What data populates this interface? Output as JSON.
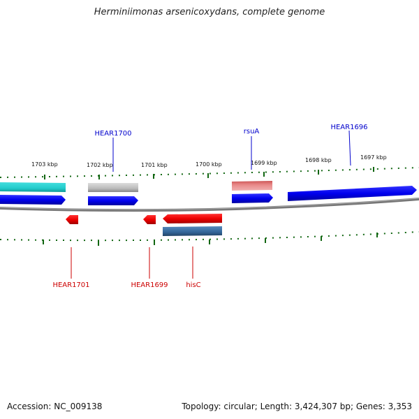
{
  "title": "Herminiimonas arsenicoxydans, complete genome",
  "footer": {
    "accession": "Accession: NC_009138",
    "summary": "Topology: circular; Length: 3,424,307 bp; Genes: 3,353"
  },
  "scale_labels": [
    "1703 kbp",
    "1702 kbp",
    "1701 kbp",
    "1700 kbp",
    "1699 kbp",
    "1698 kbp",
    "1697 kbp"
  ],
  "gene_labels_top": [
    "HEAR1700",
    "rsuA",
    "HEAR1696"
  ],
  "gene_labels_bottom": [
    "HEAR1701",
    "HEAR1699",
    "hisC"
  ],
  "colors": {
    "forward_cds": "#0000ee",
    "reverse_cds": "#ee0000",
    "rna_teal": "#22cccc",
    "pseudo_gray": "#bbbbbb",
    "pink_feature": "#e88888",
    "steelblue_feature": "#336699",
    "backbone": "#777777",
    "ticks": "#116611",
    "label_forward": "#0000cc",
    "label_reverse": "#cc0000"
  }
}
